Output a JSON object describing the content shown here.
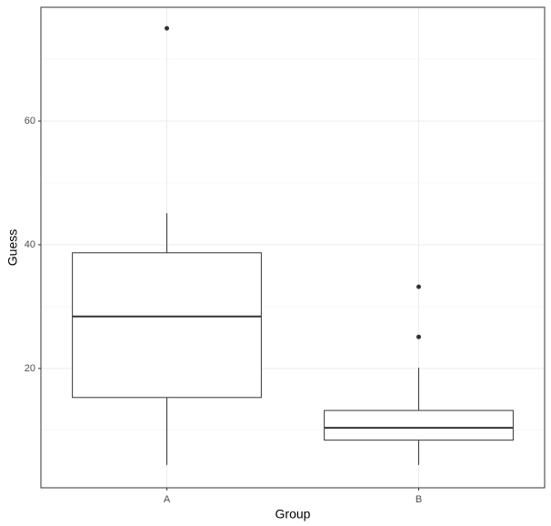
{
  "chart_data": {
    "type": "box",
    "x_label": "Group",
    "y_label": "Guess",
    "categories": [
      "A",
      "B"
    ],
    "boxes": [
      {
        "min": 4.4,
        "q1": 15.3,
        "median": 28.4,
        "q3": 38.7,
        "max": 45.1,
        "outliers": [
          75
        ]
      },
      {
        "min": 4.4,
        "q1": 8.4,
        "median": 10.4,
        "q3": 13.2,
        "max": 20.1,
        "outliers": [
          33.2,
          25.1
        ]
      }
    ],
    "color": "#333333",
    "ylim": [
      0.7,
      78.4
    ],
    "yticks": [
      20,
      40,
      60
    ],
    "y_minor_ticks": [
      10,
      30,
      50,
      70
    ],
    "grid": true
  }
}
